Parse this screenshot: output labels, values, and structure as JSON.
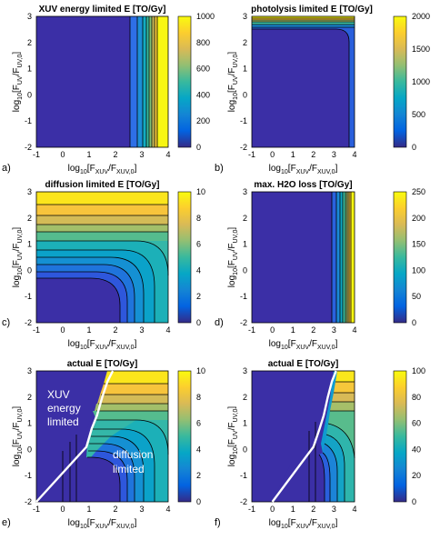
{
  "chart_data": [
    {
      "type": "heatmap",
      "panel_label": "a)",
      "title": "XUV energy limited E [TO/Gy]",
      "xlim": [
        -1,
        4
      ],
      "ylim": [
        -2,
        3
      ],
      "x_ticks": [
        "-1",
        "0",
        "1",
        "2",
        "3",
        "4"
      ],
      "y_ticks": [
        "-2",
        "-1",
        "0",
        "1",
        "2",
        "3"
      ],
      "colorbar": {
        "range": [
          0,
          1000
        ],
        "ticks": [
          "0",
          "200",
          "400",
          "600",
          "800",
          "1000"
        ]
      },
      "depends_on": "x",
      "contour_levels_x": [
        2.82,
        3.2,
        3.4,
        3.52,
        3.62,
        3.7,
        3.77,
        3.83
      ],
      "values_along_x": [
        [
          -1,
          0
        ],
        [
          2.8,
          0
        ],
        [
          3.0,
          63
        ],
        [
          3.2,
          100
        ],
        [
          3.4,
          250
        ],
        [
          3.6,
          400
        ],
        [
          3.8,
          630
        ],
        [
          4.0,
          1000
        ]
      ]
    },
    {
      "type": "heatmap",
      "panel_label": "b)",
      "title": "photolysis limited E [TO/Gy]",
      "xlim": [
        -1,
        4
      ],
      "ylim": [
        -2,
        3
      ],
      "x_ticks": [
        "-1",
        "0",
        "1",
        "2",
        "3",
        "4"
      ],
      "y_ticks": [
        "-2",
        "-1",
        "0",
        "1",
        "2",
        "3"
      ],
      "colorbar": {
        "range": [
          0,
          2000
        ],
        "ticks": [
          "0",
          "500",
          "1000",
          "1500",
          "2000"
        ]
      },
      "depends_on": "y",
      "contour_levels_y": [
        2.05,
        2.35,
        2.55,
        2.68,
        2.78,
        2.86,
        2.93
      ],
      "values_along_y": [
        [
          -2,
          0
        ],
        [
          2.0,
          0
        ],
        [
          2.3,
          200
        ],
        [
          2.6,
          400
        ],
        [
          2.8,
          900
        ],
        [
          3.0,
          2000
        ]
      ]
    },
    {
      "type": "heatmap",
      "panel_label": "c)",
      "title": "diffusion limited E [TO/Gy]",
      "xlim": [
        -1,
        4
      ],
      "ylim": [
        -2,
        3
      ],
      "x_ticks": [
        "-1",
        "0",
        "1",
        "2",
        "3",
        "4"
      ],
      "y_ticks": [
        "-2",
        "-1",
        "0",
        "1",
        "2",
        "3"
      ],
      "colorbar": {
        "range": [
          0,
          10
        ],
        "ticks": [
          "0",
          "2",
          "4",
          "6",
          "8",
          "10"
        ]
      },
      "depends_on": "x,y",
      "values_along_y_at_x_eq_4": [
        [
          -2,
          5
        ],
        [
          0,
          5.5
        ],
        [
          1,
          6.5
        ],
        [
          2,
          8
        ],
        [
          3,
          9.5
        ]
      ],
      "values_along_y_at_x_eq_-1": [
        [
          -2,
          0
        ],
        [
          0,
          0
        ],
        [
          1,
          2
        ],
        [
          2,
          8
        ],
        [
          3,
          9.5
        ]
      ]
    },
    {
      "type": "heatmap",
      "panel_label": "d)",
      "title": "max. H2O loss [TO/Gy]",
      "xlim": [
        -1,
        4
      ],
      "ylim": [
        -2,
        3
      ],
      "x_ticks": [
        "-1",
        "0",
        "1",
        "2",
        "3",
        "4"
      ],
      "y_ticks": [
        "-2",
        "-1",
        "0",
        "1",
        "2",
        "3"
      ],
      "colorbar": {
        "range": [
          0,
          250
        ],
        "ticks": [
          "0",
          "50",
          "100",
          "150",
          "200",
          "250"
        ]
      },
      "depends_on": "x",
      "contour_levels_x": [
        2.92,
        3.2,
        3.4,
        3.55,
        3.66,
        3.76,
        3.84,
        3.91
      ],
      "values_along_x": [
        [
          -1,
          0
        ],
        [
          2.9,
          0
        ],
        [
          3.3,
          30
        ],
        [
          3.6,
          80
        ],
        [
          3.8,
          150
        ],
        [
          4.0,
          250
        ]
      ]
    },
    {
      "type": "heatmap",
      "panel_label": "e)",
      "title": "actual E [TO/Gy]",
      "xlim": [
        -1,
        4
      ],
      "ylim": [
        -2,
        3
      ],
      "x_ticks": [
        "-1",
        "0",
        "1",
        "2",
        "3",
        "4"
      ],
      "y_ticks": [
        "-2",
        "-1",
        "0",
        "1",
        "2",
        "3"
      ],
      "colorbar": {
        "range": [
          0,
          10
        ],
        "ticks": [
          "0",
          "2",
          "4",
          "6",
          "8",
          "10"
        ]
      },
      "depends_on": "x,y",
      "boundary_curve": [
        [
          -1,
          -2
        ],
        [
          0.9,
          0.1
        ],
        [
          1.1,
          0.8
        ],
        [
          1.3,
          1.3
        ],
        [
          1.5,
          2.0
        ],
        [
          1.7,
          2.6
        ],
        [
          1.9,
          3.0
        ]
      ],
      "annotations": [
        "XUV",
        "energy",
        "limited",
        "diffusion",
        "limited"
      ]
    },
    {
      "type": "heatmap",
      "panel_label": "f)",
      "title": "actual E [TO/Gy]",
      "xlim": [
        -1,
        4
      ],
      "ylim": [
        -2,
        3
      ],
      "x_ticks": [
        "-1",
        "0",
        "1",
        "2",
        "3",
        "4"
      ],
      "y_ticks": [
        "-2",
        "-1",
        "0",
        "1",
        "2",
        "3"
      ],
      "colorbar": {
        "range": [
          0,
          100
        ],
        "ticks": [
          "0",
          "20",
          "40",
          "60",
          "80",
          "100"
        ]
      },
      "depends_on": "x,y",
      "boundary_curve": [
        [
          0,
          -2
        ],
        [
          2.0,
          0.1
        ],
        [
          2.3,
          0.8
        ],
        [
          2.5,
          1.3
        ],
        [
          2.7,
          2.0
        ],
        [
          2.9,
          2.6
        ],
        [
          3.1,
          3.0
        ]
      ]
    }
  ]
}
